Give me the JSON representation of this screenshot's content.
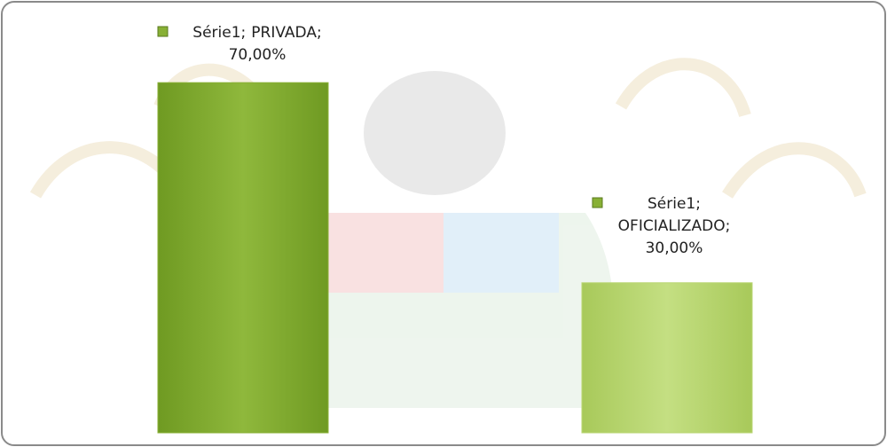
{
  "chart_data": {
    "type": "bar",
    "series": [
      {
        "name": "Série1",
        "colors": [
          "#88b035",
          "#b9d673"
        ],
        "values": [
          70,
          30
        ],
        "value_labels": [
          "70,00%",
          "30,00%"
        ]
      }
    ],
    "categories": [
      "PRIVADA",
      "OFICIALIZADO"
    ],
    "label_separator": ";"
  }
}
